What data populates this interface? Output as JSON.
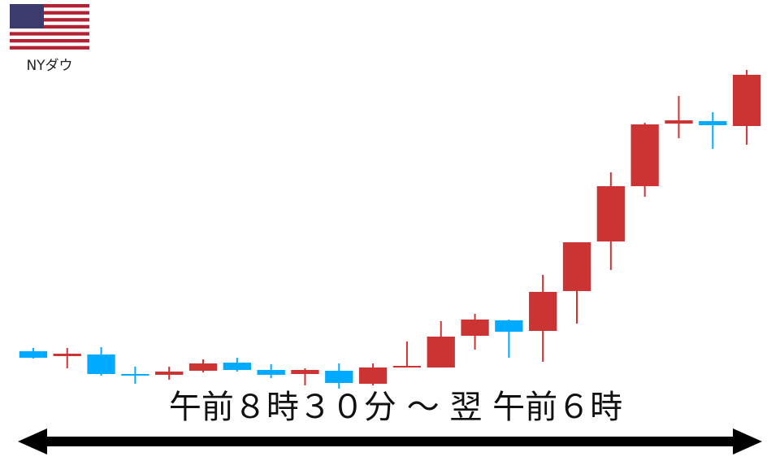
{
  "chart_data": {
    "type": "candlestick",
    "label": "NYダウ",
    "caption": "午前８時３０分 ～ 翌 午前６時",
    "open": [
      48,
      42,
      44,
      20,
      19,
      24,
      34,
      25,
      20,
      24,
      8,
      28,
      28,
      67,
      86,
      73,
      122,
      183,
      251,
      328,
      331,
      325
    ],
    "high": [
      52,
      52,
      53,
      29,
      29,
      38,
      40,
      32,
      27,
      33,
      33,
      60,
      85,
      94,
      87,
      142,
      182,
      268,
      329,
      362,
      342,
      394
    ],
    "low": [
      39,
      27,
      18,
      8,
      13,
      22,
      23,
      15,
      6,
      2,
      6,
      28,
      28,
      50,
      40,
      35,
      82,
      148,
      238,
      310,
      297,
      302
    ],
    "close": [
      40,
      45,
      20,
      18,
      23,
      33,
      25,
      19,
      25,
      9,
      28,
      30,
      66,
      87,
      72,
      121,
      182,
      251,
      327,
      332,
      326,
      388
    ],
    "up_color": "#cc3333",
    "down_color": "#00aaff",
    "ylim": [
      0,
      400
    ]
  }
}
